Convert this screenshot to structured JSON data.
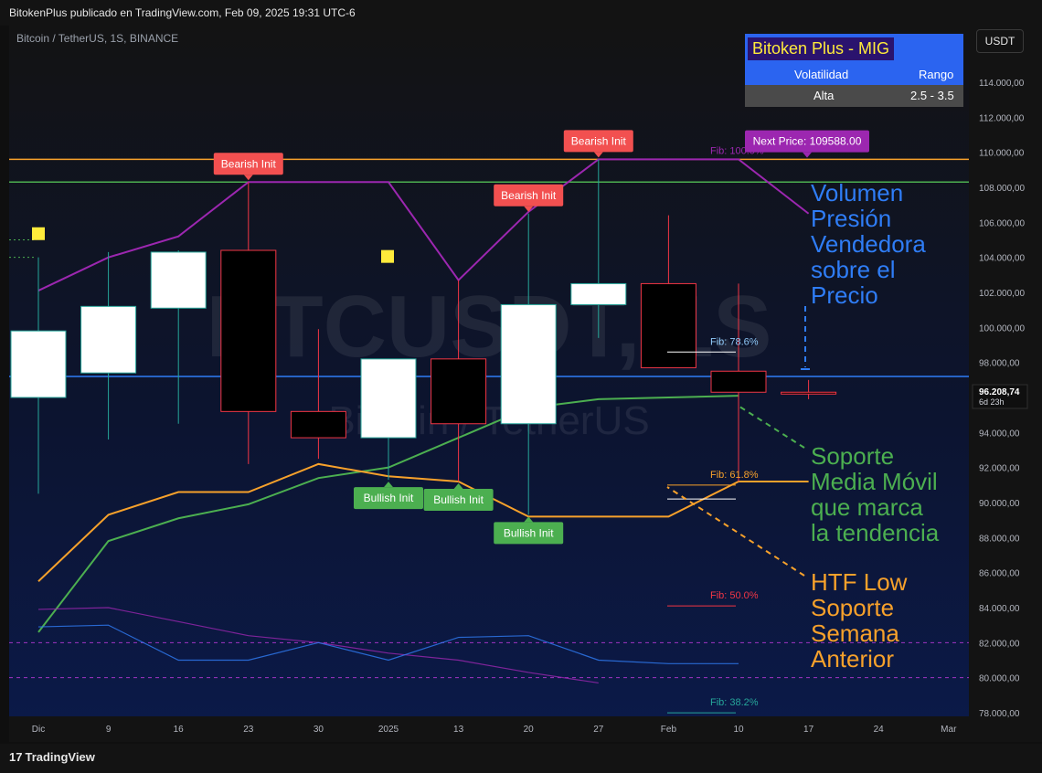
{
  "header": {
    "published": "BitokenPlus publicado en TradingView.com, Feb 09, 2025 19:31 UTC-6"
  },
  "symbol": {
    "label": "Bitcoin / TetherUS, 1S, BINANCE",
    "watermark_top": "BTCUSDT, 1S",
    "watermark_bottom": "Bitcoin / TetherUS"
  },
  "currency_button": "USDT",
  "info_table": {
    "title": "Bitoken Plus - MIG",
    "col1": "Volatilidad",
    "col2": "Rango",
    "val1": "Alta",
    "val2": "2.5 - 3.5"
  },
  "price_axis": {
    "labels": [
      "114.000,00",
      "112.000,00",
      "110.000,00",
      "108.000,00",
      "106.000,00",
      "104.000,00",
      "102.000,00",
      "100.000,00",
      "98.000,00",
      "94.000,00",
      "92.000,00",
      "90.000,00",
      "88.000,00",
      "86.000,00",
      "84.000,00",
      "82.000,00",
      "80.000,00",
      "78.000,00"
    ],
    "current_price": "96.208,74",
    "countdown": "6d 23h"
  },
  "time_axis": {
    "labels": [
      "Dic",
      "9",
      "16",
      "23",
      "30",
      "2025",
      "13",
      "20",
      "27",
      "Feb",
      "10",
      "17",
      "24",
      "Mar"
    ]
  },
  "fib_labels": [
    "Fib: 100.0%",
    "Fib: 78.6%",
    "Fib: 61.8%",
    "Fib: 50.0%",
    "Fib: 38.2%"
  ],
  "next_price": "Next Price: 109588.00",
  "signals": {
    "bearish": "Bearish Init",
    "bullish": "Bullish Init"
  },
  "annotations": [
    {
      "text": "Volumen Presión Vendedora sobre el Precio",
      "lines": [
        "Volumen",
        "Presión",
        "Vendedora",
        "sobre el",
        "Precio"
      ],
      "color": "#2f7df6"
    },
    {
      "text": "Soporte Media Móvil que marca la tendencia",
      "lines": [
        "Soporte",
        "Media Móvil",
        "que marca",
        "la tendencia"
      ],
      "color": "#4caf50"
    },
    {
      "text": "HTF Low Soporte Semana Anterior",
      "lines": [
        "HTF Low",
        "Soporte",
        "Semana",
        "Anterior"
      ],
      "color": "#f7a12b"
    }
  ],
  "footer": {
    "brand": "TradingView"
  },
  "colors": {
    "up": "#ffffff",
    "down": "#000000",
    "wick_up": "#26a69a",
    "wick_down": "#f23645",
    "ma": "#4caf50",
    "low_line": "#f7a12b",
    "high_line": "#9c27b0",
    "blue": "#2f7df6"
  },
  "chart_data": {
    "type": "candlestick",
    "timeframe": "1S",
    "y_axis": {
      "min": 78000,
      "max": 114000
    },
    "candles": [
      {
        "date": "2024-11-25",
        "open": 96000,
        "high": 104000,
        "low": 90500,
        "close": 99800
      },
      {
        "date": "2024-12-02",
        "open": 97400,
        "high": 104300,
        "low": 93600,
        "close": 101200
      },
      {
        "date": "2024-12-09",
        "open": 101100,
        "high": 104400,
        "low": 94500,
        "close": 104300
      },
      {
        "date": "2024-12-16",
        "open": 104400,
        "high": 108300,
        "low": 92200,
        "close": 95200
      },
      {
        "date": "2024-12-23",
        "open": 95200,
        "high": 99900,
        "low": 92500,
        "close": 93700
      },
      {
        "date": "2024-12-30",
        "open": 93700,
        "high": 98200,
        "low": 91300,
        "close": 98200
      },
      {
        "date": "2025-01-06",
        "open": 98200,
        "high": 102700,
        "low": 91200,
        "close": 94500
      },
      {
        "date": "2025-01-13",
        "open": 94500,
        "high": 106500,
        "low": 89300,
        "close": 101300
      },
      {
        "date": "2025-01-20",
        "open": 101300,
        "high": 109600,
        "low": 99400,
        "close": 102500
      },
      {
        "date": "2025-01-27",
        "open": 102500,
        "high": 106400,
        "low": 97700,
        "close": 97700
      },
      {
        "date": "2025-02-03",
        "open": 97500,
        "high": 102500,
        "low": 91200,
        "close": 96300
      },
      {
        "date": "2025-02-10",
        "open": 96300,
        "high": 97000,
        "low": 95900,
        "close": 96208.74
      }
    ],
    "series": [
      {
        "name": "",
        "color": "#4caf50",
        "values": [
          82600,
          87800,
          89100,
          89900,
          91400,
          92000,
          93700,
          95400,
          95900,
          96000,
          96100
        ]
      },
      {
        "name": "",
        "color": "#f7a12b",
        "values": [
          85500,
          89300,
          90600,
          90600,
          92200,
          91500,
          91200,
          89200,
          89200,
          89200,
          91200,
          91200
        ]
      },
      {
        "name": "",
        "color": "#9c27b0",
        "values": [
          102100,
          104000,
          105200,
          108300,
          108300,
          108300,
          102700,
          106600,
          109600,
          109600,
          109600,
          106500
        ]
      },
      {
        "name": "",
        "color": "#9c27b0",
        "values": [
          83900,
          84000,
          83200,
          82400,
          82000,
          81400,
          81000,
          80300,
          79700
        ]
      },
      {
        "name": "",
        "color": "#2f7df6",
        "values": [
          82900,
          83000,
          81000,
          81000,
          82000,
          81000,
          82300,
          82400,
          81000,
          80800,
          80800
        ]
      }
    ],
    "hlines": [
      {
        "value": 97200,
        "color": "#2f7df6"
      },
      {
        "value": 109600,
        "color": "#f7a12b"
      },
      {
        "value": 108300,
        "color": "#4caf50"
      },
      {
        "value": 82000,
        "color": "#e040fb",
        "style": "dashed"
      },
      {
        "value": 80000,
        "color": "#e040fb",
        "style": "dashed"
      }
    ],
    "fib_levels": [
      {
        "label": "Fib: 100.0%",
        "value": 109600
      },
      {
        "label": "Fib: 78.6%",
        "value": 98700
      },
      {
        "label": "Fib: 61.8%",
        "value": 91100
      },
      {
        "label": "Fib: 50.0%",
        "value": 84200
      },
      {
        "label": "Fib: 38.2%",
        "value": 78100
      }
    ],
    "signals": [
      {
        "type": "bearish",
        "date": "2024-12-16",
        "price": 108300
      },
      {
        "type": "bearish",
        "date": "2025-01-13",
        "price": 106500
      },
      {
        "type": "bearish",
        "date": "2025-01-20",
        "price": 109600
      },
      {
        "type": "bullish",
        "date": "2024-12-30",
        "price": 91300
      },
      {
        "type": "bullish",
        "date": "2025-01-06",
        "price": 91200
      },
      {
        "type": "bullish",
        "date": "2025-01-13",
        "price": 89300
      }
    ],
    "next_price": 109588.0,
    "current_price": 96208.74
  }
}
